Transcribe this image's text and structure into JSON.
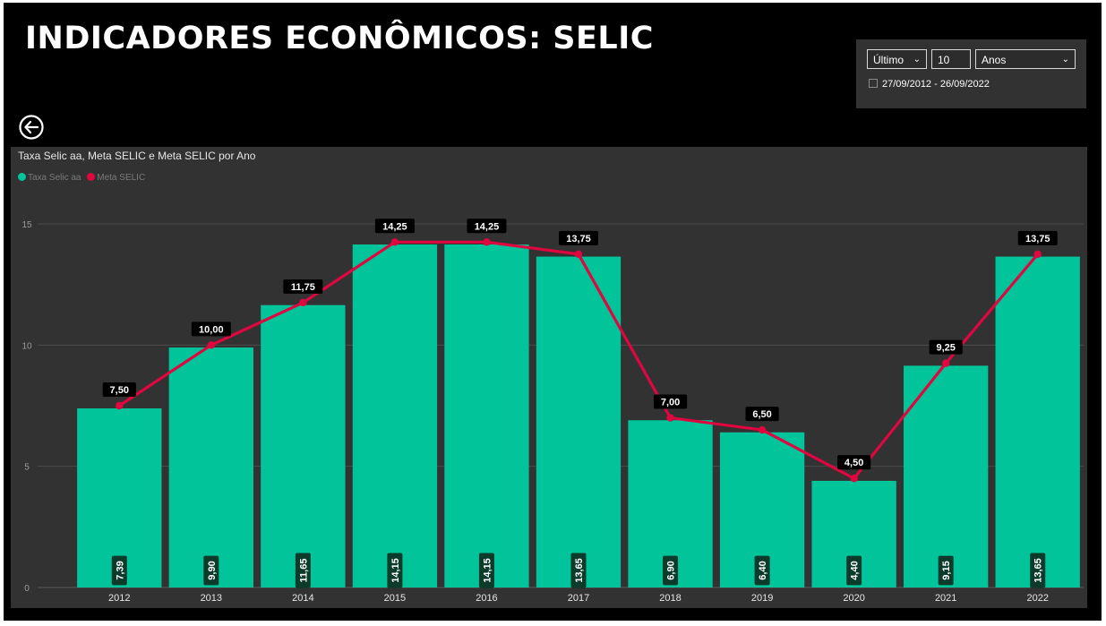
{
  "header": {
    "title": "INDICADORES ECONÔMICOS: SELIC"
  },
  "filter": {
    "period": "Último",
    "count": "10",
    "unit": "Anos",
    "date_range": "27/09/2012 - 26/09/2022"
  },
  "icons": {
    "back": "arrow-left-circle-icon",
    "calendar": "calendar-icon",
    "dropdown": "chevron-down-icon"
  },
  "colors": {
    "bar": "#01c49a",
    "line": "#e0063f",
    "panel": "#323232",
    "background": "#000000"
  },
  "chart_data": {
    "type": "bar",
    "title": "Taxa Selic aa, Meta SELIC e Meta SELIC por Ano",
    "legend": {
      "position": "top-left",
      "items": [
        "Taxa Selic aa",
        "Meta SELIC"
      ]
    },
    "categories": [
      "2012",
      "2013",
      "2014",
      "2015",
      "2016",
      "2017",
      "2018",
      "2019",
      "2020",
      "2021",
      "2022"
    ],
    "series": [
      {
        "name": "Taxa Selic aa",
        "type": "bar",
        "color": "#01c49a",
        "values": [
          7.39,
          9.9,
          11.65,
          14.15,
          14.15,
          13.65,
          6.9,
          6.4,
          4.4,
          9.15,
          13.65
        ],
        "labels": [
          "7,39",
          "9,90",
          "11,65",
          "14,15",
          "14,15",
          "13,65",
          "6,90",
          "6,40",
          "4,40",
          "9,15",
          "13,65"
        ]
      },
      {
        "name": "Meta SELIC",
        "type": "line",
        "color": "#e0063f",
        "values": [
          7.5,
          10.0,
          11.75,
          14.25,
          14.25,
          13.75,
          7.0,
          6.5,
          4.5,
          9.25,
          13.75
        ],
        "labels": [
          "7,50",
          "10,00",
          "11,75",
          "14,25",
          "14,25",
          "13,75",
          "7,00",
          "6,50",
          "4,50",
          "9,25",
          "13,75"
        ]
      }
    ],
    "yticks": [
      "0",
      "5",
      "10",
      "15"
    ],
    "ylim": [
      0,
      15
    ],
    "grid": true
  }
}
